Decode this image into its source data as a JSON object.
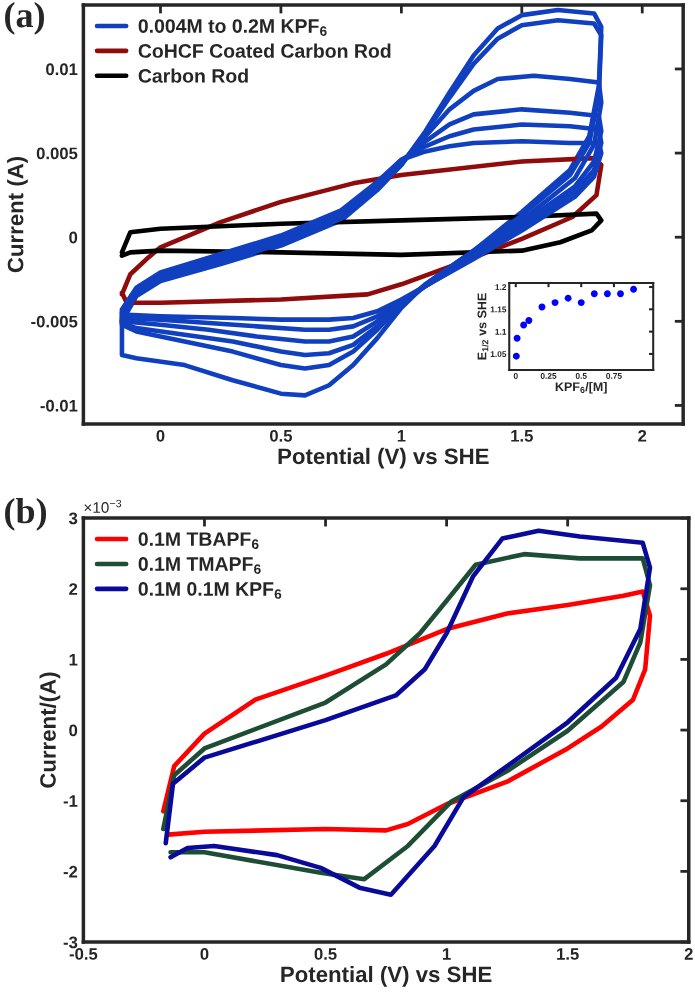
{
  "chart_data": [
    {
      "type": "line",
      "xlabel": "Potential (V) vs SHE",
      "ylabel": "Current (A)",
      "xlim": [
        -0.32,
        2.17
      ],
      "ylim": [
        -0.0111,
        0.0138
      ],
      "xticks": [
        0,
        0.5,
        1,
        1.5,
        2
      ],
      "yticks": [
        -0.01,
        -0.005,
        0,
        0.005,
        0.01
      ],
      "grid": false,
      "legend": "top left",
      "annotations": [
        "(a)"
      ],
      "series": [
        {
          "name": "0.004M to 0.2M KPF$_{6}$",
          "color": "#1040c0",
          "x": [
            -0.16,
            -0.1,
            0,
            0.25,
            0.5,
            0.75,
            0.9,
            1.0,
            1.1,
            1.2,
            1.3,
            1.4,
            1.5,
            1.65,
            1.8,
            1.83,
            1.82,
            1.78,
            1.7,
            1.5,
            1.3,
            1.1,
            1.0,
            0.9,
            0.8,
            0.7,
            0.6,
            0.5,
            0.3,
            0.1,
            -0.1,
            -0.16,
            -0.16
          ],
          "values": [
            -0.005,
            -0.0035,
            -0.0026,
            -0.0016,
            -0.0005,
            0.001,
            0.0028,
            0.0043,
            0.0063,
            0.0086,
            0.0108,
            0.0124,
            0.0132,
            0.0135,
            0.0133,
            0.0125,
            0.009,
            0.006,
            0.004,
            0.0015,
            -0.0008,
            -0.0028,
            -0.0042,
            -0.006,
            -0.0076,
            -0.0088,
            -0.0094,
            -0.0093,
            -0.0085,
            -0.0076,
            -0.0072,
            -0.007,
            -0.0049
          ]
        },
        {
          "name": "CoHCF Coated Carbon Rod",
          "color": "#900c0c",
          "x": [
            -0.16,
            -0.125,
            -0.05,
            0,
            0.25,
            0.5,
            0.8,
            1.0,
            1.5,
            1.8,
            1.83,
            1.81,
            1.71,
            1.5,
            1.21,
            1.0,
            0.86,
            0.5,
            0,
            -0.14,
            -0.16
          ],
          "values": [
            -0.0034,
            -0.0022,
            -0.0012,
            -0.0006,
            0.0009,
            0.0021,
            0.0032,
            0.0037,
            0.0045,
            0.0047,
            0.0043,
            0.0025,
            0.0012,
            -0.0001,
            -0.0017,
            -0.0028,
            -0.0034,
            -0.0037,
            -0.0039,
            -0.0039,
            -0.0033
          ]
        },
        {
          "name": "Carbon Rod",
          "color": "#000000",
          "x": [
            -0.16,
            -0.125,
            0,
            0.5,
            1.0,
            1.5,
            1.81,
            1.83,
            1.79,
            1.66,
            1.5,
            1.0,
            0.5,
            0,
            -0.125,
            -0.16
          ],
          "values": [
            -0.0009,
            0.0003,
            0.0005,
            0.0008,
            0.001,
            0.0012,
            0.0014,
            0.001,
            0.0004,
            -0.0003,
            -0.0008,
            -0.00105,
            -0.0009,
            -0.0008,
            -0.0009,
            -0.0011
          ]
        },
        {
          "color": "#1040c0",
          "x": [
            -0.16,
            -0.1,
            0,
            0.25,
            0.5,
            0.75,
            0.9,
            1.0,
            1.1,
            1.2,
            1.3,
            1.4,
            1.5,
            1.65,
            1.8,
            1.83,
            1.82,
            1.78,
            1.7,
            1.5,
            1.3,
            1.1,
            1.0,
            0.9,
            0.8,
            0.7,
            0.6,
            0.5,
            0.3,
            0.1,
            -0.1,
            -0.16,
            -0.16
          ],
          "values": [
            -0.0048,
            -0.0034,
            -0.0025,
            -0.0015,
            -0.0004,
            0.0011,
            0.0029,
            0.0043,
            0.0062,
            0.0083,
            0.0103,
            0.0118,
            0.0126,
            0.0129,
            0.0127,
            0.012,
            0.0085,
            0.0056,
            0.0037,
            0.0013,
            -0.0008,
            -0.0028,
            -0.004,
            -0.0055,
            -0.0068,
            -0.0076,
            -0.0078,
            -0.0076,
            -0.0068,
            -0.0062,
            -0.0056,
            -0.0052,
            -0.0047
          ]
        },
        {
          "color": "#1040c0",
          "x": [
            -0.16,
            -0.1,
            0,
            0.25,
            0.5,
            0.75,
            0.9,
            1.0,
            1.1,
            1.2,
            1.3,
            1.4,
            1.55,
            1.7,
            1.82,
            1.83,
            1.8,
            1.72,
            1.5,
            1.3,
            1.1,
            1.0,
            0.9,
            0.8,
            0.7,
            0.6,
            0.5,
            0.3,
            0.1,
            -0.1,
            -0.16,
            -0.16
          ],
          "values": [
            -0.0046,
            -0.0033,
            -0.0024,
            -0.0013,
            -0.0002,
            0.0013,
            0.003,
            0.0044,
            0.006,
            0.0076,
            0.0087,
            0.0094,
            0.0096,
            0.0094,
            0.0092,
            0.008,
            0.0055,
            0.0035,
            0.001,
            -0.001,
            -0.0029,
            -0.004,
            -0.0053,
            -0.0064,
            -0.0069,
            -0.007,
            -0.0068,
            -0.0062,
            -0.0058,
            -0.0054,
            -0.0051,
            -0.0045
          ]
        },
        {
          "color": "#1040c0",
          "x": [
            -0.16,
            -0.1,
            0,
            0.25,
            0.5,
            0.75,
            0.9,
            1.0,
            1.1,
            1.2,
            1.3,
            1.5,
            1.7,
            1.82,
            1.83,
            1.8,
            1.72,
            1.5,
            1.3,
            1.1,
            1.0,
            0.9,
            0.8,
            0.7,
            0.6,
            0.4,
            0.2,
            0,
            -0.16
          ],
          "values": [
            -0.0045,
            -0.0032,
            -0.0023,
            -0.0012,
            -0.0001,
            0.0014,
            0.0031,
            0.0045,
            0.0057,
            0.0067,
            0.0073,
            0.0076,
            0.0074,
            0.0072,
            0.0063,
            0.0045,
            0.003,
            0.0008,
            -0.0011,
            -0.0029,
            -0.0039,
            -0.005,
            -0.0059,
            -0.0062,
            -0.0062,
            -0.0059,
            -0.0055,
            -0.0052,
            -0.005
          ]
        },
        {
          "color": "#1040c0",
          "x": [
            -0.16,
            -0.1,
            0,
            0.25,
            0.5,
            0.75,
            0.9,
            1.0,
            1.1,
            1.2,
            1.3,
            1.5,
            1.7,
            1.82,
            1.83,
            1.8,
            1.72,
            1.5,
            1.3,
            1.1,
            1.0,
            0.9,
            0.8,
            0.7,
            0.6,
            0.4,
            0.2,
            0,
            -0.16
          ],
          "values": [
            -0.0044,
            -0.0031,
            -0.0022,
            -0.0011,
            0,
            0.0015,
            0.0032,
            0.0046,
            0.0054,
            0.006,
            0.0064,
            0.0067,
            0.0066,
            0.0064,
            0.0056,
            0.004,
            0.0027,
            0.0006,
            -0.0012,
            -0.0029,
            -0.0038,
            -0.0047,
            -0.0053,
            -0.0055,
            -0.0055,
            -0.0053,
            -0.0051,
            -0.0049,
            -0.0048
          ]
        },
        {
          "color": "#1040c0",
          "x": [
            -0.16,
            -0.1,
            0,
            0.25,
            0.5,
            0.75,
            0.9,
            1.0,
            1.1,
            1.2,
            1.3,
            1.5,
            1.7,
            1.82,
            1.83,
            1.8,
            1.72,
            1.5,
            1.3,
            1.1,
            1.0,
            0.9,
            0.8,
            0.7,
            0.5,
            0.3,
            0,
            -0.16
          ],
          "values": [
            -0.0043,
            -0.003,
            -0.0021,
            -0.001,
            0.0001,
            0.0016,
            0.0033,
            0.0046,
            0.0051,
            0.0054,
            0.0056,
            0.0057,
            0.0056,
            0.0056,
            0.005,
            0.0036,
            0.0024,
            0.0004,
            -0.0013,
            -0.0029,
            -0.0037,
            -0.0044,
            -0.0048,
            -0.0049,
            -0.0049,
            -0.0048,
            -0.0047,
            -0.0046
          ]
        }
      ]
    },
    {
      "type": "scatter",
      "xlabel": "KPF$_{6}$/[M]",
      "ylabel": "E$_{1/2}$ vs SHE",
      "xlim": [
        -0.05,
        1.05
      ],
      "ylim": [
        1.014,
        1.209
      ],
      "xticks": [
        0,
        0.25,
        0.5,
        0.75
      ],
      "yticks": [
        1.05,
        1.1,
        1.15,
        1.2
      ],
      "grid": false,
      "marker": "circle",
      "series": [
        {
          "color": "#0000ff",
          "x": [
            0.004,
            0.01,
            0.06,
            0.1,
            0.2,
            0.3,
            0.4,
            0.5,
            0.6,
            0.7,
            0.8,
            0.9
          ],
          "values": [
            1.045,
            1.085,
            1.115,
            1.125,
            1.155,
            1.165,
            1.175,
            1.165,
            1.185,
            1.185,
            1.185,
            1.195
          ]
        }
      ]
    },
    {
      "type": "line",
      "xlabel": "Potential (V) vs SHE",
      "ylabel": "Current/(A)",
      "xlim": [
        -0.5,
        2
      ],
      "ylim": [
        -3,
        3
      ],
      "xticks": [
        -0.5,
        0,
        0.5,
        1,
        1.5,
        2
      ],
      "yticks": [
        -3,
        -2,
        -1,
        0,
        1,
        2,
        3
      ],
      "grid": false,
      "legend": "top left",
      "annotations": [
        "(b)",
        "×10$^{−3}$"
      ],
      "series": [
        {
          "name": "0.1M TBAPF$_{6}$",
          "color": "#ff0000",
          "x": [
            -0.17,
            -0.125,
            0,
            0.21,
            0.5,
            0.75,
            1.0,
            1.25,
            1.5,
            1.73,
            1.81,
            1.84,
            1.82,
            1.77,
            1.64,
            1.5,
            1.25,
            1.0,
            0.84,
            0.75,
            0.5,
            0,
            -0.15
          ],
          "values": [
            -1.15,
            -0.51,
            -0.05,
            0.43,
            0.77,
            1.08,
            1.43,
            1.65,
            1.77,
            1.9,
            1.96,
            1.62,
            0.86,
            0.43,
            0.05,
            -0.26,
            -0.73,
            -1.05,
            -1.33,
            -1.42,
            -1.4,
            -1.44,
            -1.48
          ]
        },
        {
          "name": "0.1M TMAPF$_{6}$",
          "color": "#1e4d36",
          "x": [
            -0.17,
            -0.125,
            0,
            0.5,
            0.75,
            0.89,
            1.0,
            1.12,
            1.32,
            1.55,
            1.81,
            1.84,
            1.8,
            1.73,
            1.5,
            1.25,
            1.02,
            0.84,
            0.66,
            0.48,
            0,
            -0.14
          ],
          "values": [
            -1.4,
            -0.64,
            -0.26,
            0.39,
            0.93,
            1.37,
            1.83,
            2.34,
            2.49,
            2.43,
            2.43,
            2.05,
            1.24,
            0.68,
            -0.01,
            -0.58,
            -1.01,
            -1.64,
            -2.11,
            -2.02,
            -1.73,
            -1.73
          ]
        },
        {
          "name": "0.1M 0.1M KPF$_{6}$",
          "color": "#0a0a9a",
          "x": [
            -0.16,
            -0.13,
            0,
            0.5,
            0.79,
            0.91,
            1.0,
            1.11,
            1.23,
            1.38,
            1.55,
            1.81,
            1.84,
            1.8,
            1.7,
            1.5,
            1.25,
            1.07,
            0.95,
            0.77,
            0.64,
            0.48,
            0.3,
            0.04,
            -0.07,
            -0.14
          ],
          "values": [
            -1.6,
            -0.76,
            -0.39,
            0.14,
            0.49,
            0.86,
            1.37,
            2.18,
            2.71,
            2.82,
            2.74,
            2.65,
            2.3,
            1.43,
            0.74,
            0.11,
            -0.51,
            -0.95,
            -1.64,
            -2.33,
            -2.23,
            -1.95,
            -1.77,
            -1.64,
            -1.67,
            -1.8
          ]
        }
      ]
    }
  ]
}
